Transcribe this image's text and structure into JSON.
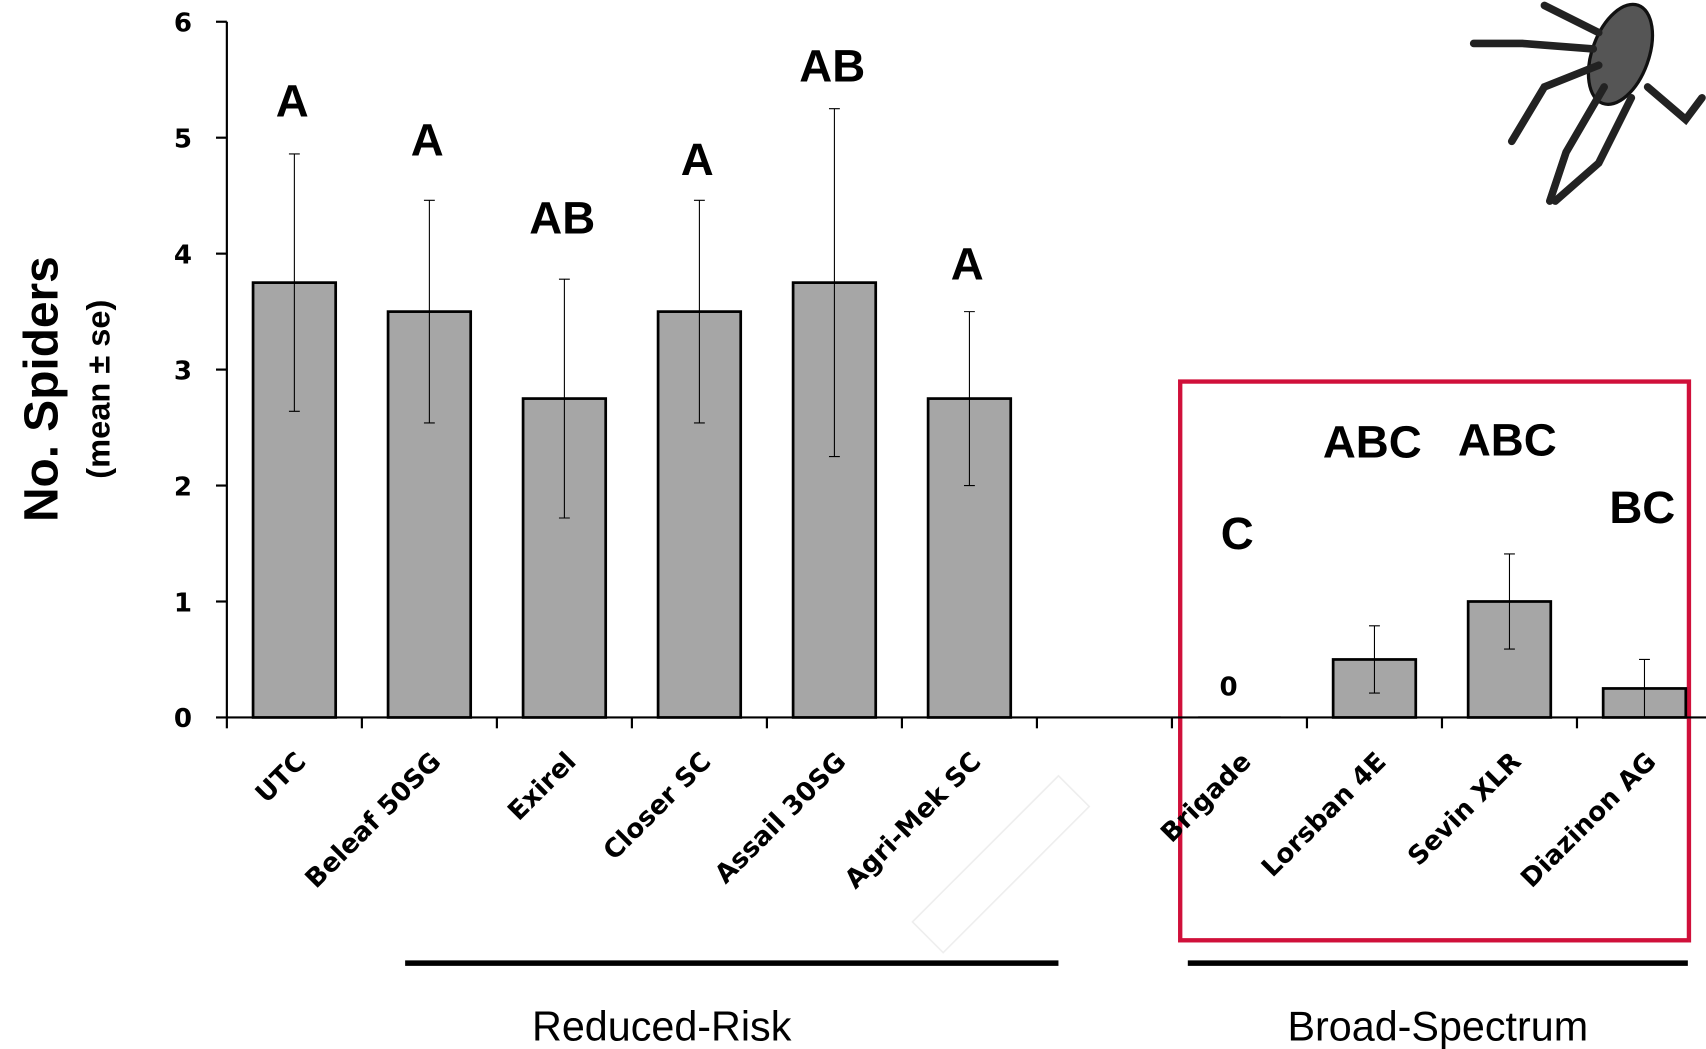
{
  "chart_data": {
    "type": "bar",
    "ylabel": "No. Spiders",
    "ylabel_sub": "(mean ± se)",
    "categories": [
      "UTC",
      "Beleaf 50SG",
      "Exirel",
      "Closer SC",
      "Assail 30SG",
      "Agri-Mek SC",
      null,
      "Brigade",
      "Lorsban 4E",
      "Sevin XLR",
      "Diazinon AG"
    ],
    "series": [
      {
        "color": "#a6a6a6",
        "values": [
          3.75,
          3.5,
          2.75,
          3.5,
          3.75,
          2.75,
          null,
          0,
          0.5,
          1,
          0.25
        ],
        "errors": [
          1.11,
          0.96,
          1.03,
          0.96,
          1.5,
          0.75,
          null,
          0,
          0.29,
          0.41,
          0.25
        ],
        "letters": [
          "A",
          "A",
          "AB",
          "A",
          "AB",
          "A",
          null,
          "C",
          "ABC",
          "ABC",
          "BC"
        ]
      }
    ],
    "groups": [
      "Reduced-Risk",
      "Broad-Spectrum"
    ],
    "ylim": [
      0,
      6
    ],
    "yticks": [
      0,
      1,
      2,
      3,
      4,
      5,
      6
    ]
  }
}
